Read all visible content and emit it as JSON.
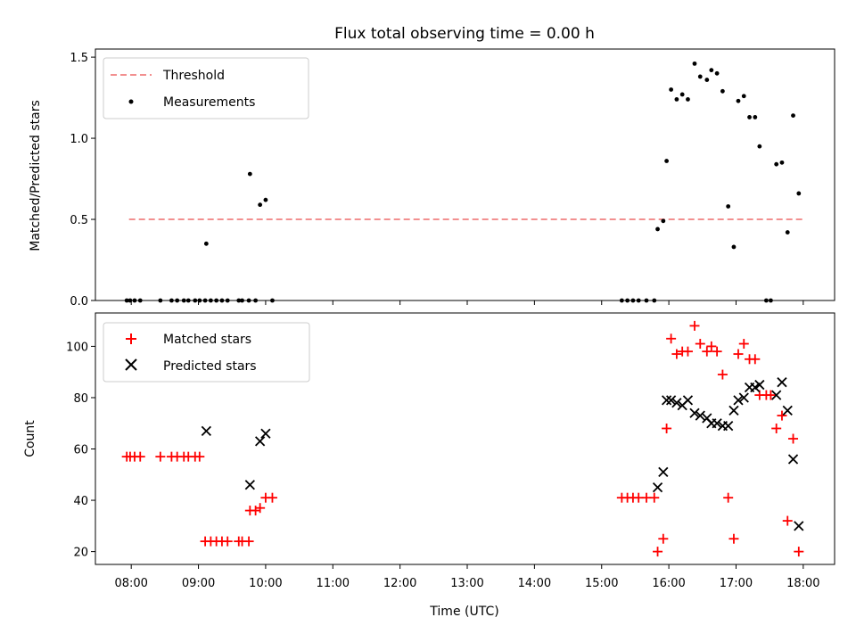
{
  "chart_data": [
    {
      "type": "scatter",
      "title": "Flux total observing time = 0.00 h",
      "ylabel": "Matched/Predicted stars",
      "ylim": [
        0,
        1.55
      ],
      "yticks": [
        "0.0",
        "0.5",
        "1.0",
        "1.5"
      ],
      "legend_placement": "top-left",
      "threshold": {
        "name": "Threshold",
        "value": 0.5,
        "x_range": [
          "07:58",
          "18:00"
        ],
        "color": "#f08080",
        "style": "dashed"
      },
      "series": [
        {
          "name": "Measurements",
          "marker": "dot",
          "color": "#000000",
          "points": [
            [
              "07:56",
              0
            ],
            [
              "07:59",
              0
            ],
            [
              "08:03",
              0
            ],
            [
              "08:08",
              0
            ],
            [
              "08:26",
              0
            ],
            [
              "08:36",
              0
            ],
            [
              "08:41",
              0
            ],
            [
              "08:47",
              0
            ],
            [
              "08:51",
              0
            ],
            [
              "08:57",
              0
            ],
            [
              "09:01",
              0
            ],
            [
              "09:06",
              0
            ],
            [
              "09:07",
              0.35
            ],
            [
              "09:11",
              0
            ],
            [
              "09:16",
              0
            ],
            [
              "09:21",
              0
            ],
            [
              "09:26",
              0
            ],
            [
              "09:36",
              0
            ],
            [
              "09:39",
              0
            ],
            [
              "09:45",
              0
            ],
            [
              "09:46",
              0.78
            ],
            [
              "09:51",
              0
            ],
            [
              "09:55",
              0.59
            ],
            [
              "10:00",
              0.62
            ],
            [
              "10:06",
              0
            ],
            [
              "15:18",
              0
            ],
            [
              "15:23",
              0
            ],
            [
              "15:28",
              0
            ],
            [
              "15:33",
              0
            ],
            [
              "15:40",
              0
            ],
            [
              "15:47",
              0
            ],
            [
              "15:50",
              0.44
            ],
            [
              "15:55",
              0.49
            ],
            [
              "15:58",
              0.86
            ],
            [
              "16:02",
              1.3
            ],
            [
              "16:07",
              1.24
            ],
            [
              "16:12",
              1.27
            ],
            [
              "16:17",
              1.24
            ],
            [
              "16:23",
              1.46
            ],
            [
              "16:28",
              1.38
            ],
            [
              "16:34",
              1.36
            ],
            [
              "16:38",
              1.42
            ],
            [
              "16:43",
              1.4
            ],
            [
              "16:48",
              1.29
            ],
            [
              "16:53",
              0.58
            ],
            [
              "16:58",
              0.33
            ],
            [
              "17:02",
              1.23
            ],
            [
              "17:07",
              1.26
            ],
            [
              "17:12",
              1.13
            ],
            [
              "17:17",
              1.13
            ],
            [
              "17:21",
              0.95
            ],
            [
              "17:27",
              0
            ],
            [
              "17:31",
              0
            ],
            [
              "17:36",
              0.84
            ],
            [
              "17:41",
              0.85
            ],
            [
              "17:46",
              0.42
            ],
            [
              "17:51",
              1.14
            ],
            [
              "17:56",
              0.66
            ]
          ]
        }
      ]
    },
    {
      "type": "scatter",
      "xlabel": "Time (UTC)",
      "ylabel": "Count",
      "ylim": [
        15,
        113
      ],
      "yticks": [
        "20",
        "40",
        "60",
        "80",
        "100"
      ],
      "xticks": [
        "08:00",
        "09:00",
        "10:00",
        "11:00",
        "12:00",
        "13:00",
        "14:00",
        "15:00",
        "16:00",
        "17:00",
        "18:00"
      ],
      "xlim": [
        "07:28",
        "18:28"
      ],
      "legend_placement": "top-left",
      "series": [
        {
          "name": "Matched stars",
          "marker": "plus",
          "color": "#ff0000",
          "points": [
            [
              "07:56",
              57
            ],
            [
              "07:59",
              57
            ],
            [
              "08:03",
              57
            ],
            [
              "08:08",
              57
            ],
            [
              "08:26",
              57
            ],
            [
              "08:36",
              57
            ],
            [
              "08:41",
              57
            ],
            [
              "08:47",
              57
            ],
            [
              "08:51",
              57
            ],
            [
              "08:57",
              57
            ],
            [
              "09:01",
              57
            ],
            [
              "09:06",
              24
            ],
            [
              "09:11",
              24
            ],
            [
              "09:16",
              24
            ],
            [
              "09:21",
              24
            ],
            [
              "09:26",
              24
            ],
            [
              "09:36",
              24
            ],
            [
              "09:39",
              24
            ],
            [
              "09:45",
              24
            ],
            [
              "09:46",
              36
            ],
            [
              "09:51",
              36
            ],
            [
              "09:55",
              37
            ],
            [
              "10:00",
              41
            ],
            [
              "10:06",
              41
            ],
            [
              "15:18",
              41
            ],
            [
              "15:23",
              41
            ],
            [
              "15:28",
              41
            ],
            [
              "15:33",
              41
            ],
            [
              "15:40",
              41
            ],
            [
              "15:47",
              41
            ],
            [
              "15:50",
              20
            ],
            [
              "15:55",
              25
            ],
            [
              "15:58",
              68
            ],
            [
              "16:02",
              103
            ],
            [
              "16:07",
              97
            ],
            [
              "16:12",
              98
            ],
            [
              "16:17",
              98
            ],
            [
              "16:23",
              108
            ],
            [
              "16:28",
              101
            ],
            [
              "16:34",
              98
            ],
            [
              "16:38",
              100
            ],
            [
              "16:43",
              98
            ],
            [
              "16:48",
              89
            ],
            [
              "16:53",
              41
            ],
            [
              "16:58",
              25
            ],
            [
              "17:02",
              97
            ],
            [
              "17:07",
              101
            ],
            [
              "17:12",
              95
            ],
            [
              "17:17",
              95
            ],
            [
              "17:21",
              81
            ],
            [
              "17:27",
              81
            ],
            [
              "17:31",
              81
            ],
            [
              "17:36",
              68
            ],
            [
              "17:41",
              73
            ],
            [
              "17:46",
              32
            ],
            [
              "17:51",
              64
            ],
            [
              "17:56",
              20
            ]
          ]
        },
        {
          "name": "Predicted stars",
          "marker": "cross",
          "color": "#000000",
          "points": [
            [
              "09:07",
              67
            ],
            [
              "09:46",
              46
            ],
            [
              "09:55",
              63
            ],
            [
              "10:00",
              66
            ],
            [
              "15:50",
              45
            ],
            [
              "15:55",
              51
            ],
            [
              "15:58",
              79
            ],
            [
              "16:02",
              79
            ],
            [
              "16:07",
              78
            ],
            [
              "16:12",
              77
            ],
            [
              "16:17",
              79
            ],
            [
              "16:23",
              74
            ],
            [
              "16:28",
              73
            ],
            [
              "16:34",
              72
            ],
            [
              "16:38",
              70
            ],
            [
              "16:43",
              70
            ],
            [
              "16:48",
              69
            ],
            [
              "16:53",
              69
            ],
            [
              "16:58",
              75
            ],
            [
              "17:02",
              79
            ],
            [
              "17:07",
              80
            ],
            [
              "17:12",
              84
            ],
            [
              "17:17",
              84
            ],
            [
              "17:21",
              85
            ],
            [
              "17:36",
              81
            ],
            [
              "17:41",
              86
            ],
            [
              "17:46",
              75
            ],
            [
              "17:51",
              56
            ],
            [
              "17:56",
              30
            ]
          ]
        }
      ]
    }
  ]
}
